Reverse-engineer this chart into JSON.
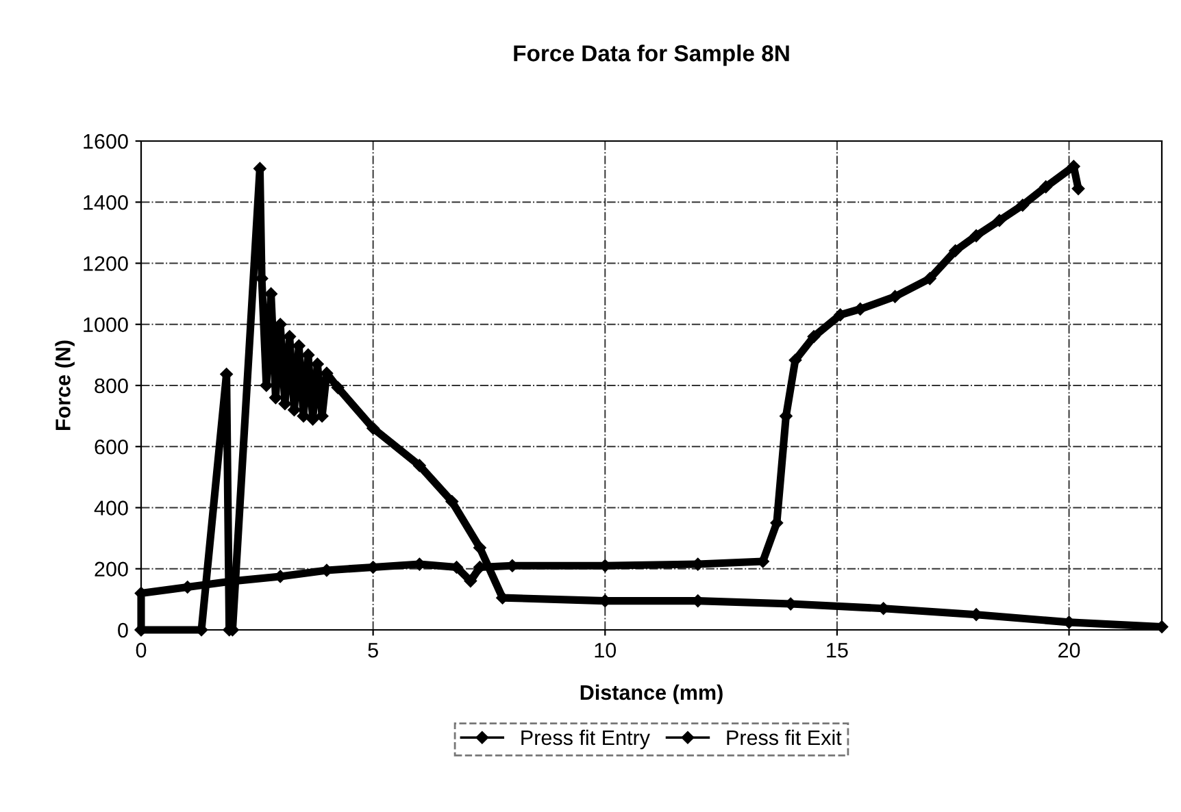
{
  "chart_data": {
    "type": "line",
    "title": "Force Data for Sample 8N",
    "xlabel": "Distance (mm)",
    "ylabel": "Force (N)",
    "series": [
      {
        "name": "Press fit Entry",
        "color": "#000000",
        "x": [
          0,
          0,
          1,
          2,
          3,
          4,
          5,
          6,
          6.8,
          7.1,
          7.3,
          8,
          10,
          12,
          13.4,
          13.7,
          13.9,
          14.1,
          14.5,
          15.07,
          15.5,
          16.25,
          17,
          17.55,
          18,
          18.5,
          19,
          19.5,
          20.1,
          20.2
        ],
        "values": [
          0,
          120,
          140,
          160,
          175,
          195,
          205,
          215,
          205,
          160,
          205,
          210,
          210,
          215,
          224,
          350,
          700,
          883,
          960,
          1031,
          1050,
          1091,
          1150,
          1241,
          1290,
          1340,
          1390,
          1450,
          1517,
          1444
        ]
      },
      {
        "name": "Press fit Exit",
        "color": "#000000",
        "x": [
          0,
          1.3,
          1.84,
          1.9,
          1.97,
          2.56,
          2.6,
          2.7,
          2.8,
          2.9,
          3.0,
          3.1,
          3.2,
          3.3,
          3.4,
          3.5,
          3.6,
          3.7,
          3.8,
          3.9,
          4.0,
          4.24,
          5,
          6,
          6.7,
          7.3,
          7.79,
          10,
          12,
          14,
          16,
          18,
          20,
          22
        ],
        "values": [
          0,
          0,
          837,
          0,
          0,
          1510,
          1150,
          800,
          1100,
          760,
          1000,
          740,
          960,
          720,
          930,
          700,
          900,
          690,
          870,
          700,
          840,
          793,
          660,
          538,
          420,
          269,
          105,
          95,
          95,
          85,
          70,
          50,
          25,
          10
        ]
      }
    ],
    "xlim": [
      0,
      22
    ],
    "xticks": [
      0,
      5,
      10,
      15,
      20
    ],
    "ylim": [
      0,
      1600
    ],
    "yticks": [
      0,
      200,
      400,
      600,
      800,
      1000,
      1200,
      1400,
      1600
    ],
    "grid": true,
    "legend": "bottom",
    "marker": "diamond",
    "line_style": "solid"
  }
}
